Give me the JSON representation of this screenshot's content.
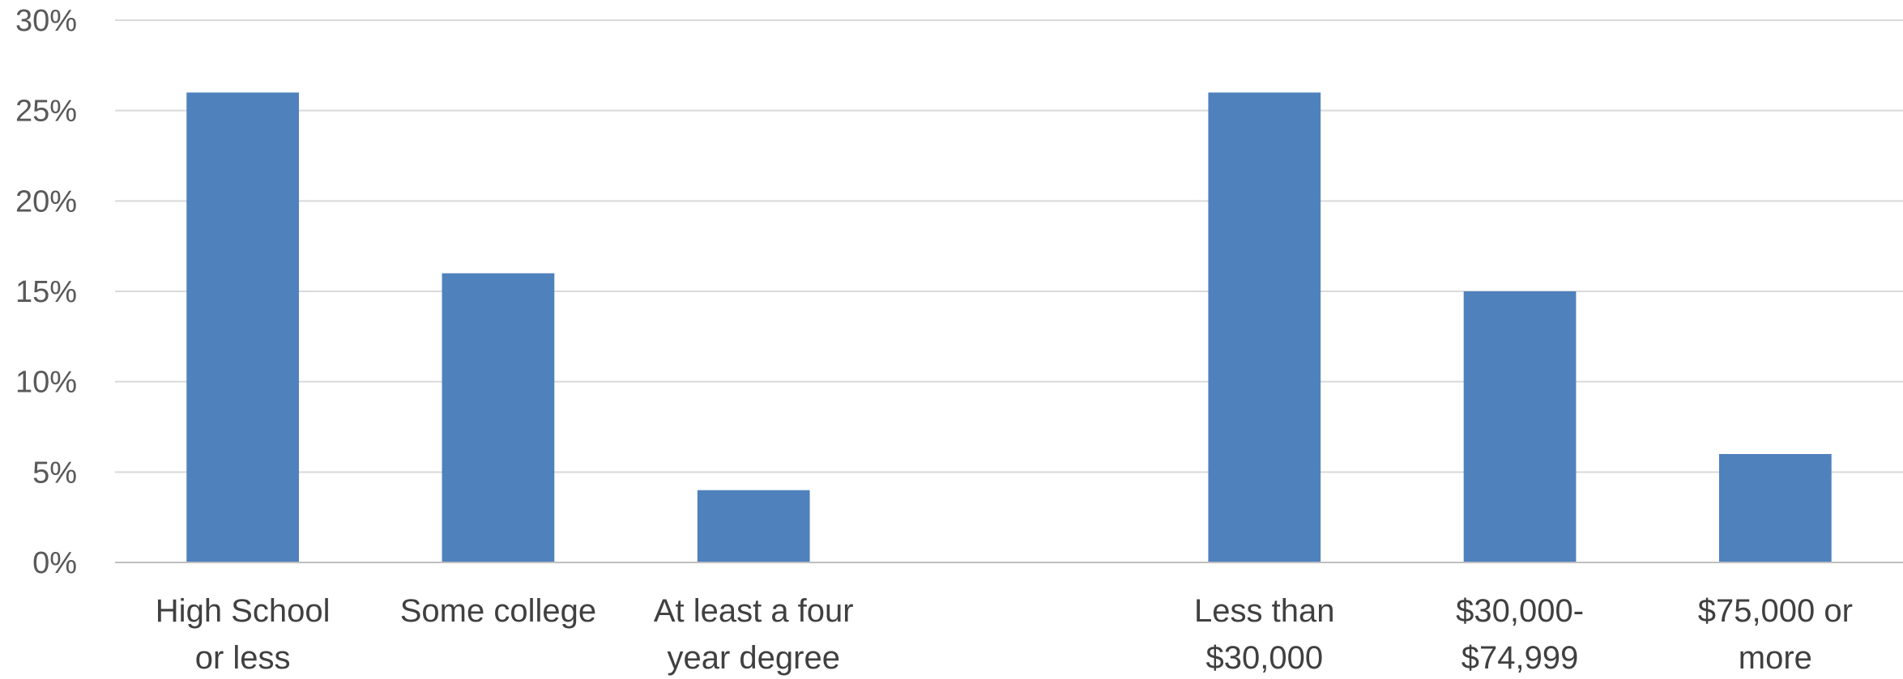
{
  "chart_data": {
    "type": "bar",
    "categories": [
      [
        "High School",
        "or less"
      ],
      [
        "Some college"
      ],
      [
        "At least a four",
        "year degree"
      ],
      [],
      [
        "Less than",
        "$30,000"
      ],
      [
        "$30,000-",
        "$74,999"
      ],
      [
        "$75,000 or",
        "more"
      ]
    ],
    "values": [
      26,
      16,
      4,
      null,
      26,
      15,
      6
    ],
    "y_ticks": [
      "0%",
      "5%",
      "10%",
      "15%",
      "20%",
      "25%",
      "30%"
    ],
    "y_tick_values": [
      0,
      5,
      10,
      15,
      20,
      25,
      30
    ],
    "ylim": [
      0,
      30
    ],
    "grid": true,
    "legend": "none",
    "colors": {
      "bar": "#4f81bd"
    }
  }
}
